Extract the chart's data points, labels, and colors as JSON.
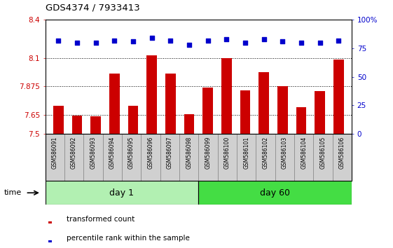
{
  "title": "GDS4374 / 7933413",
  "samples": [
    "GSM586091",
    "GSM586092",
    "GSM586093",
    "GSM586094",
    "GSM586095",
    "GSM586096",
    "GSM586097",
    "GSM586098",
    "GSM586099",
    "GSM586100",
    "GSM586101",
    "GSM586102",
    "GSM586103",
    "GSM586104",
    "GSM586105",
    "GSM586106"
  ],
  "bar_values": [
    7.72,
    7.645,
    7.64,
    7.975,
    7.72,
    8.12,
    7.975,
    7.655,
    7.865,
    8.1,
    7.845,
    7.985,
    7.875,
    7.71,
    7.84,
    8.085
  ],
  "dot_values": [
    82,
    80,
    80,
    82,
    81,
    84,
    82,
    78,
    82,
    83,
    80,
    83,
    81,
    80,
    80,
    82
  ],
  "bar_color": "#cc0000",
  "dot_color": "#0000cc",
  "ylim_left": [
    7.5,
    8.4
  ],
  "ylim_right": [
    0,
    100
  ],
  "yticks_left": [
    7.5,
    7.65,
    7.875,
    8.1,
    8.4
  ],
  "ytick_labels_left": [
    "7.5",
    "7.65",
    "7.875",
    "8.1",
    "8.4"
  ],
  "yticks_right": [
    0,
    25,
    50,
    75,
    100
  ],
  "ytick_labels_right": [
    "0",
    "25",
    "50",
    "75",
    "100%"
  ],
  "grid_lines": [
    7.65,
    7.875,
    8.1
  ],
  "day1_samples": 8,
  "day60_samples": 8,
  "day1_label": "day 1",
  "day60_label": "day 60",
  "time_label": "time",
  "legend_bar_label": "transformed count",
  "legend_dot_label": "percentile rank within the sample",
  "background_color": "#ffffff",
  "plot_bg_color": "#ffffff",
  "bar_width": 0.55,
  "tick_label_color_left": "#cc0000",
  "tick_label_color_right": "#0000cc",
  "day1_color": "#b2f0b2",
  "day60_color": "#44dd44",
  "sample_bg_color": "#d0d0d0",
  "sample_cell_border": "#888888"
}
